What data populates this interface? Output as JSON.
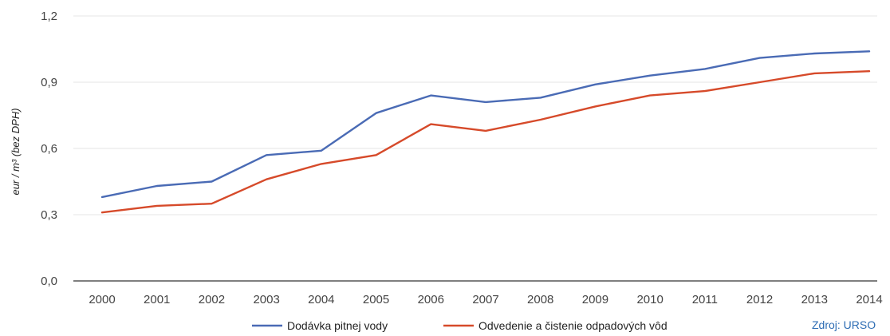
{
  "chart_data": {
    "type": "line",
    "title": "",
    "xlabel": "",
    "ylabel": "eur / m³ (bez DPH)",
    "x": [
      "2000",
      "2001",
      "2002",
      "2003",
      "2004",
      "2005",
      "2006",
      "2007",
      "2008",
      "2009",
      "2010",
      "2011",
      "2012",
      "2013",
      "2014"
    ],
    "ylim": [
      0,
      1.2
    ],
    "yticks": [
      "0,0",
      "0,3",
      "0,6",
      "0,9",
      "1,2"
    ],
    "grid": true,
    "legend_position": "bottom",
    "series": [
      {
        "name": "Dodávka pitnej vody",
        "color": "#4a6bb5",
        "values": [
          0.38,
          0.43,
          0.45,
          0.57,
          0.59,
          0.76,
          0.84,
          0.81,
          0.83,
          0.89,
          0.93,
          0.96,
          1.01,
          1.03,
          1.04
        ]
      },
      {
        "name": "Odvedenie a čistenie odpadových vôd",
        "color": "#d64a2a",
        "values": [
          0.31,
          0.34,
          0.35,
          0.46,
          0.53,
          0.57,
          0.71,
          0.68,
          0.73,
          0.79,
          0.84,
          0.86,
          0.9,
          0.94,
          0.95
        ]
      }
    ],
    "source": "Zdroj: URSO"
  }
}
